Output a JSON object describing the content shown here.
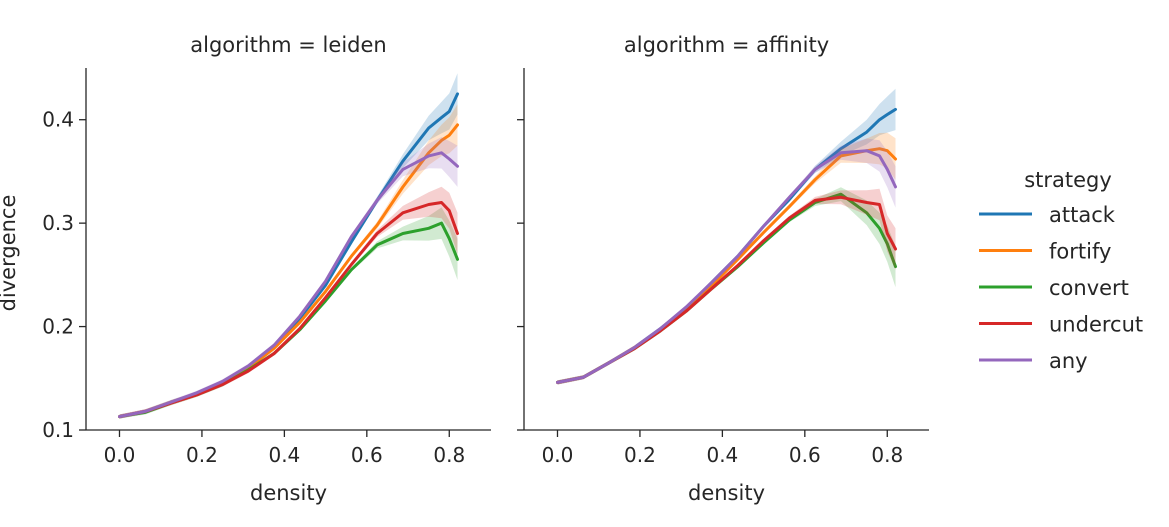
{
  "chart_data": {
    "type": "line",
    "x": [
      0.0,
      0.0625,
      0.125,
      0.1875,
      0.25,
      0.3125,
      0.375,
      0.4375,
      0.5,
      0.5625,
      0.625,
      0.6875,
      0.75,
      0.7812,
      0.8,
      0.82
    ],
    "ylabel": "divergence",
    "xlabel": "density",
    "legend": {
      "title": "strategy",
      "placement": "right",
      "entries": [
        "attack",
        "fortify",
        "convert",
        "undercut",
        "any"
      ]
    },
    "colors": {
      "attack": "#1f77b4",
      "fortify": "#ff7f0e",
      "convert": "#2ca02c",
      "undercut": "#d62728",
      "any": "#9467bd",
      "axis": "#262626"
    },
    "ylim": [
      0.1,
      0.45
    ],
    "xlim": [
      -0.04,
      0.86
    ],
    "xticks": [
      "0.0",
      "0.2",
      "0.4",
      "0.6",
      "0.8"
    ],
    "xtick_values": [
      0.0,
      0.2,
      0.4,
      0.6,
      0.8
    ],
    "yticks": [
      "0.1",
      "0.2",
      "0.3",
      "0.4"
    ],
    "ytick_values": [
      0.1,
      0.2,
      0.3,
      0.4
    ],
    "panels": [
      {
        "title": "algorithm = leiden",
        "series": [
          {
            "name": "attack",
            "values": [
              0.113,
              0.118,
              0.127,
              0.135,
              0.146,
              0.161,
              0.181,
              0.208,
              0.24,
              0.282,
              0.322,
              0.36,
              0.392,
              0.402,
              0.408,
              0.425
            ]
          },
          {
            "name": "fortify",
            "values": [
              0.113,
              0.118,
              0.127,
              0.135,
              0.146,
              0.16,
              0.179,
              0.204,
              0.234,
              0.268,
              0.298,
              0.335,
              0.368,
              0.38,
              0.385,
              0.395
            ]
          },
          {
            "name": "convert",
            "values": [
              0.113,
              0.117,
              0.126,
              0.134,
              0.144,
              0.158,
              0.174,
              0.197,
              0.225,
              0.255,
              0.279,
              0.29,
              0.295,
              0.3,
              0.285,
              0.265
            ]
          },
          {
            "name": "undercut",
            "values": [
              0.113,
              0.118,
              0.126,
              0.134,
              0.144,
              0.157,
              0.174,
              0.198,
              0.228,
              0.26,
              0.29,
              0.31,
              0.318,
              0.32,
              0.312,
              0.29
            ]
          },
          {
            "name": "any",
            "values": [
              0.113,
              0.118,
              0.127,
              0.136,
              0.147,
              0.162,
              0.182,
              0.21,
              0.244,
              0.287,
              0.322,
              0.352,
              0.365,
              0.368,
              0.362,
              0.355
            ]
          }
        ]
      },
      {
        "title": "algorithm = affinity",
        "series": [
          {
            "name": "attack",
            "values": [
              0.146,
              0.151,
              0.165,
              0.18,
              0.198,
              0.218,
              0.243,
              0.268,
              0.297,
              0.323,
              0.352,
              0.372,
              0.388,
              0.4,
              0.405,
              0.41
            ]
          },
          {
            "name": "fortify",
            "values": [
              0.146,
              0.151,
              0.165,
              0.18,
              0.197,
              0.217,
              0.24,
              0.265,
              0.291,
              0.316,
              0.342,
              0.365,
              0.37,
              0.372,
              0.37,
              0.362
            ]
          },
          {
            "name": "convert",
            "values": [
              0.146,
              0.151,
              0.165,
              0.179,
              0.196,
              0.215,
              0.237,
              0.258,
              0.281,
              0.303,
              0.32,
              0.328,
              0.31,
              0.295,
              0.28,
              0.258
            ]
          },
          {
            "name": "undercut",
            "values": [
              0.146,
              0.151,
              0.165,
              0.179,
              0.196,
              0.215,
              0.237,
              0.259,
              0.283,
              0.305,
              0.322,
              0.325,
              0.32,
              0.318,
              0.29,
              0.275
            ]
          },
          {
            "name": "any",
            "values": [
              0.146,
              0.151,
              0.165,
              0.18,
              0.198,
              0.219,
              0.243,
              0.268,
              0.297,
              0.325,
              0.352,
              0.368,
              0.37,
              0.365,
              0.352,
              0.335
            ]
          }
        ]
      }
    ]
  }
}
